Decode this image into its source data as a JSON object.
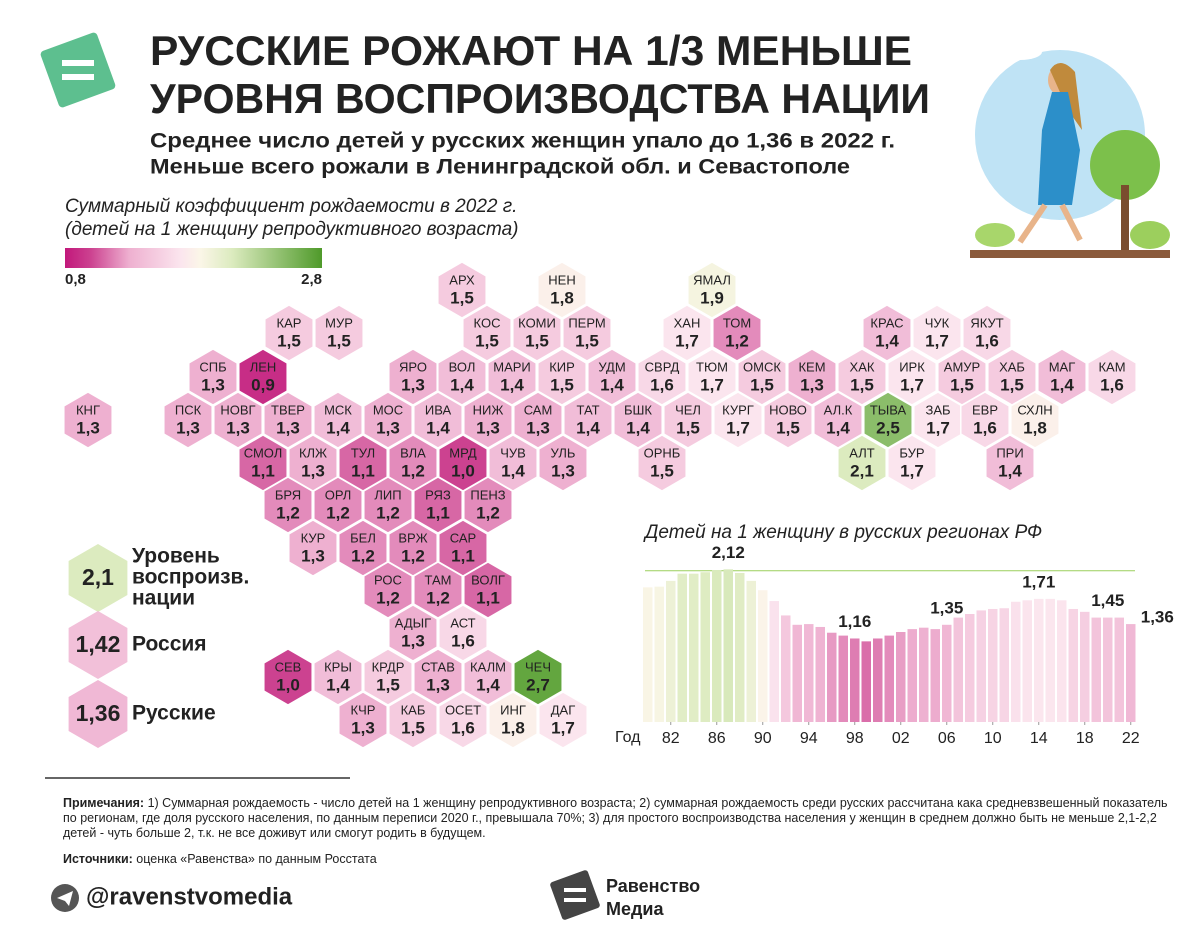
{
  "header": {
    "title_lines": [
      "РУССКИЕ РОЖАЮТ НА 1/3 МЕНЬШЕ",
      "УРОВНЯ ВОСПРОИЗВОДСТВА НАЦИИ"
    ],
    "subtitle_lines": [
      "Среднее число детей у русских женщин упало до 1,36 в 2022 г.",
      "Меньше всего рожали в Ленинградской обл. и Севастополе"
    ]
  },
  "map": {
    "caption_lines": [
      "Суммарный коэффициент рождаемости в 2022 г.",
      "(детей на 1 женщину репродуктивного возраста)"
    ],
    "scale_min": {
      "value": 0.8,
      "label": "0,8"
    },
    "scale_max": {
      "value": 2.8,
      "label": "2,8"
    },
    "color_scale": [
      [
        0.8,
        "#c2187b"
      ],
      [
        1.0,
        "#cc4290"
      ],
      [
        1.3,
        "#eeb0d0"
      ],
      [
        1.7,
        "#fbe5ee"
      ],
      [
        1.85,
        "#fbf6e8"
      ],
      [
        2.1,
        "#dcebbf"
      ],
      [
        2.8,
        "#4f9a2a"
      ]
    ],
    "regions": [
      {
        "name": "АРХ",
        "value": 1.5,
        "label": "1,5"
      },
      {
        "name": "НЕН",
        "value": 1.8,
        "label": "1,8"
      },
      {
        "name": "ЯМАЛ",
        "value": 1.9,
        "label": "1,9"
      },
      {
        "name": "КАР",
        "value": 1.5,
        "label": "1,5"
      },
      {
        "name": "МУР",
        "value": 1.5,
        "label": "1,5"
      },
      {
        "name": "КОС",
        "value": 1.5,
        "label": "1,5"
      },
      {
        "name": "КОМИ",
        "value": 1.5,
        "label": "1,5"
      },
      {
        "name": "ПЕРМ",
        "value": 1.5,
        "label": "1,5"
      },
      {
        "name": "ХАН",
        "value": 1.7,
        "label": "1,7"
      },
      {
        "name": "ТОМ",
        "value": 1.2,
        "label": "1,2"
      },
      {
        "name": "КРАС",
        "value": 1.4,
        "label": "1,4"
      },
      {
        "name": "ЧУК",
        "value": 1.7,
        "label": "1,7"
      },
      {
        "name": "ЯКУТ",
        "value": 1.6,
        "label": "1,6"
      },
      {
        "name": "СПБ",
        "value": 1.3,
        "label": "1,3"
      },
      {
        "name": "ЛЕН",
        "value": 0.9,
        "label": "0,9"
      },
      {
        "name": "ЯРО",
        "value": 1.3,
        "label": "1,3"
      },
      {
        "name": "ВОЛ",
        "value": 1.4,
        "label": "1,4"
      },
      {
        "name": "МАРИ",
        "value": 1.4,
        "label": "1,4"
      },
      {
        "name": "КИР",
        "value": 1.5,
        "label": "1,5"
      },
      {
        "name": "УДМ",
        "value": 1.4,
        "label": "1,4"
      },
      {
        "name": "СВРД",
        "value": 1.6,
        "label": "1,6"
      },
      {
        "name": "ТЮМ",
        "value": 1.7,
        "label": "1,7"
      },
      {
        "name": "ОМСК",
        "value": 1.5,
        "label": "1,5"
      },
      {
        "name": "КЕМ",
        "value": 1.3,
        "label": "1,3"
      },
      {
        "name": "ХАК",
        "value": 1.5,
        "label": "1,5"
      },
      {
        "name": "ИРК",
        "value": 1.7,
        "label": "1,7"
      },
      {
        "name": "АМУР",
        "value": 1.5,
        "label": "1,5"
      },
      {
        "name": "ХАБ",
        "value": 1.5,
        "label": "1,5"
      },
      {
        "name": "МАГ",
        "value": 1.4,
        "label": "1,4"
      },
      {
        "name": "КАМ",
        "value": 1.6,
        "label": "1,6"
      },
      {
        "name": "КНГ",
        "value": 1.3,
        "label": "1,3"
      },
      {
        "name": "ПСК",
        "value": 1.3,
        "label": "1,3"
      },
      {
        "name": "НОВГ",
        "value": 1.3,
        "label": "1,3"
      },
      {
        "name": "ТВЕР",
        "value": 1.3,
        "label": "1,3"
      },
      {
        "name": "МСК",
        "value": 1.4,
        "label": "1,4"
      },
      {
        "name": "МОС",
        "value": 1.3,
        "label": "1,3"
      },
      {
        "name": "ИВА",
        "value": 1.4,
        "label": "1,4"
      },
      {
        "name": "НИЖ",
        "value": 1.3,
        "label": "1,3"
      },
      {
        "name": "САМ",
        "value": 1.3,
        "label": "1,3"
      },
      {
        "name": "ТАТ",
        "value": 1.4,
        "label": "1,4"
      },
      {
        "name": "БШК",
        "value": 1.4,
        "label": "1,4"
      },
      {
        "name": "ЧЕЛ",
        "value": 1.5,
        "label": "1,5"
      },
      {
        "name": "КУРГ",
        "value": 1.7,
        "label": "1,7"
      },
      {
        "name": "НОВО",
        "value": 1.5,
        "label": "1,5"
      },
      {
        "name": "АЛ.К",
        "value": 1.4,
        "label": "1,4"
      },
      {
        "name": "ТЫВА",
        "value": 2.5,
        "label": "2,5"
      },
      {
        "name": "ЗАБ",
        "value": 1.7,
        "label": "1,7"
      },
      {
        "name": "ЕВР",
        "value": 1.6,
        "label": "1,6"
      },
      {
        "name": "СХЛН",
        "value": 1.8,
        "label": "1,8"
      },
      {
        "name": "СМОЛ",
        "value": 1.1,
        "label": "1,1"
      },
      {
        "name": "КЛЖ",
        "value": 1.3,
        "label": "1,3"
      },
      {
        "name": "ТУЛ",
        "value": 1.1,
        "label": "1,1"
      },
      {
        "name": "ВЛА",
        "value": 1.2,
        "label": "1,2"
      },
      {
        "name": "МРД",
        "value": 1.0,
        "label": "1,0"
      },
      {
        "name": "ЧУВ",
        "value": 1.4,
        "label": "1,4"
      },
      {
        "name": "УЛЬ",
        "value": 1.3,
        "label": "1,3"
      },
      {
        "name": "ОРНБ",
        "value": 1.5,
        "label": "1,5"
      },
      {
        "name": "АЛТ",
        "value": 2.1,
        "label": "2,1"
      },
      {
        "name": "БУР",
        "value": 1.7,
        "label": "1,7"
      },
      {
        "name": "ПРИ",
        "value": 1.4,
        "label": "1,4"
      },
      {
        "name": "БРЯ",
        "value": 1.2,
        "label": "1,2"
      },
      {
        "name": "ОРЛ",
        "value": 1.2,
        "label": "1,2"
      },
      {
        "name": "ЛИП",
        "value": 1.2,
        "label": "1,2"
      },
      {
        "name": "РЯЗ",
        "value": 1.1,
        "label": "1,1"
      },
      {
        "name": "ПЕНЗ",
        "value": 1.2,
        "label": "1,2"
      },
      {
        "name": "КУР",
        "value": 1.3,
        "label": "1,3"
      },
      {
        "name": "БЕЛ",
        "value": 1.2,
        "label": "1,2"
      },
      {
        "name": "ВРЖ",
        "value": 1.2,
        "label": "1,2"
      },
      {
        "name": "САР",
        "value": 1.1,
        "label": "1,1"
      },
      {
        "name": "РОС",
        "value": 1.2,
        "label": "1,2"
      },
      {
        "name": "ТАМ",
        "value": 1.2,
        "label": "1,2"
      },
      {
        "name": "ВОЛГ",
        "value": 1.1,
        "label": "1,1"
      },
      {
        "name": "АДЫГ",
        "value": 1.3,
        "label": "1,3"
      },
      {
        "name": "АСТ",
        "value": 1.6,
        "label": "1,6"
      },
      {
        "name": "СЕВ",
        "value": 1.0,
        "label": "1,0"
      },
      {
        "name": "КРЫ",
        "value": 1.4,
        "label": "1,4"
      },
      {
        "name": "КРДР",
        "value": 1.5,
        "label": "1,5"
      },
      {
        "name": "СТАВ",
        "value": 1.3,
        "label": "1,3"
      },
      {
        "name": "КАЛМ",
        "value": 1.4,
        "label": "1,4"
      },
      {
        "name": "ЧЕЧ",
        "value": 2.7,
        "label": "2,7"
      },
      {
        "name": "КЧР",
        "value": 1.3,
        "label": "1,3"
      },
      {
        "name": "КАБ",
        "value": 1.5,
        "label": "1,5"
      },
      {
        "name": "ОСЕТ",
        "value": 1.6,
        "label": "1,6"
      },
      {
        "name": "ИНГ",
        "value": 1.8,
        "label": "1,8"
      },
      {
        "name": "ДАГ",
        "value": 1.7,
        "label": "1,7"
      }
    ]
  },
  "key": {
    "items": [
      {
        "value": 2.1,
        "label": "2,1",
        "lines": [
          "Уровень",
          "воспроизв.",
          "нации"
        ]
      },
      {
        "value": 1.42,
        "label": "1,42",
        "lines": [
          "Россия"
        ]
      },
      {
        "value": 1.36,
        "label": "1,36",
        "lines": [
          "Русские"
        ]
      }
    ]
  },
  "chart_data": {
    "type": "bar",
    "title": "Детей на 1 женщину в русских регионах РФ",
    "xlabel": "Год",
    "x": [
      1980,
      1981,
      1982,
      1983,
      1984,
      1985,
      1986,
      1987,
      1988,
      1989,
      1990,
      1991,
      1992,
      1993,
      1994,
      1995,
      1996,
      1997,
      1998,
      1999,
      2000,
      2001,
      2002,
      2003,
      2004,
      2005,
      2006,
      2007,
      2008,
      2009,
      2010,
      2011,
      2012,
      2013,
      2014,
      2015,
      2016,
      2017,
      2018,
      2019,
      2020,
      2021,
      2022
    ],
    "values": [
      1.87,
      1.88,
      1.96,
      2.06,
      2.06,
      2.08,
      2.11,
      2.12,
      2.07,
      1.96,
      1.83,
      1.68,
      1.48,
      1.35,
      1.36,
      1.32,
      1.24,
      1.2,
      1.16,
      1.12,
      1.16,
      1.2,
      1.25,
      1.29,
      1.31,
      1.29,
      1.35,
      1.45,
      1.5,
      1.55,
      1.57,
      1.58,
      1.67,
      1.69,
      1.71,
      1.71,
      1.69,
      1.57,
      1.53,
      1.45,
      1.45,
      1.45,
      1.36
    ],
    "value_labels": [
      null,
      null,
      null,
      null,
      null,
      null,
      null,
      "2,12",
      null,
      null,
      null,
      null,
      null,
      null,
      null,
      null,
      null,
      null,
      "1,16",
      null,
      null,
      null,
      null,
      null,
      null,
      null,
      "1,35",
      null,
      null,
      null,
      null,
      null,
      null,
      null,
      "1,71",
      null,
      null,
      null,
      null,
      null,
      "1,45",
      null,
      "1,36"
    ],
    "xlim": [
      1980,
      2022
    ],
    "ylim": [
      0,
      2.2
    ],
    "xticks": [
      {
        "value": 1982,
        "label": "82"
      },
      {
        "value": 1986,
        "label": "86"
      },
      {
        "value": 1990,
        "label": "90"
      },
      {
        "value": 1994,
        "label": "94"
      },
      {
        "value": 1998,
        "label": "98"
      },
      {
        "value": 2002,
        "label": "02"
      },
      {
        "value": 2006,
        "label": "06"
      },
      {
        "value": 2010,
        "label": "10"
      },
      {
        "value": 2014,
        "label": "14"
      },
      {
        "value": 2018,
        "label": "18"
      },
      {
        "value": 2022,
        "label": "22"
      }
    ]
  },
  "notes": {
    "label": "Примечания:",
    "text": "1) Суммарная рождаемость - число детей на 1 женщину репродуктивного возраста; 2) суммарная рождаемость среди русских рассчитана кака средневзвешенный показатель по регионам, где доля русского населения, по данным переписи 2020 г., превышала 70%; 3) для простого воспроизводства населения у женщин в среднем должно быть не меньше 2,1-2,2 детей - чуть больше 2, т.к. не все доживут или смогут родить в будущем."
  },
  "sources": {
    "label": "Источники:",
    "text": "оценка «Равенства» по данным Росстата"
  },
  "footer": {
    "handle": "@ravenstvomedia",
    "logo_lines": [
      "Равенство",
      "Медиа"
    ]
  }
}
